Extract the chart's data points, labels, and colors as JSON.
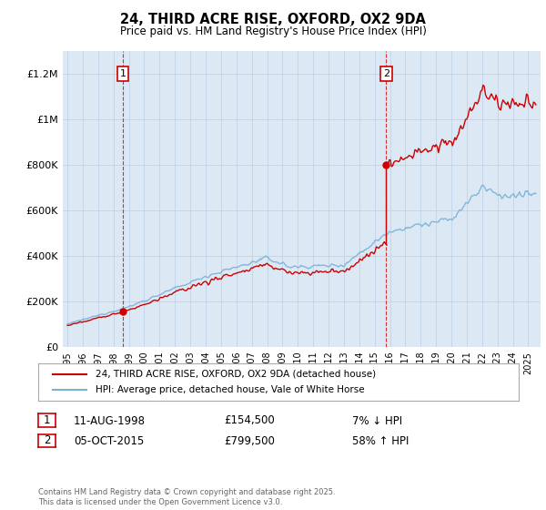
{
  "title": "24, THIRD ACRE RISE, OXFORD, OX2 9DA",
  "subtitle": "Price paid vs. HM Land Registry's House Price Index (HPI)",
  "ylim": [
    0,
    1300000
  ],
  "yticks": [
    0,
    200000,
    400000,
    600000,
    800000,
    1000000,
    1200000
  ],
  "ytick_labels": [
    "£0",
    "£200K",
    "£400K",
    "£600K",
    "£800K",
    "£1M",
    "£1.2M"
  ],
  "legend_line1": "24, THIRD ACRE RISE, OXFORD, OX2 9DA (detached house)",
  "legend_line2": "HPI: Average price, detached house, Vale of White Horse",
  "annotation1_label": "1",
  "annotation1_date": "11-AUG-1998",
  "annotation1_price": "£154,500",
  "annotation1_hpi": "7% ↓ HPI",
  "annotation2_label": "2",
  "annotation2_date": "05-OCT-2015",
  "annotation2_price": "£799,500",
  "annotation2_hpi": "58% ↑ HPI",
  "line_color_red": "#cc0000",
  "line_color_blue": "#7ab0d4",
  "vline_color": "#cc0000",
  "marker_color_red": "#cc0000",
  "background_color": "#dce9f5",
  "grid_color": "#c0d4e8",
  "copyright_text": "Contains HM Land Registry data © Crown copyright and database right 2025.\nThis data is licensed under the Open Government Licence v3.0.",
  "sale1_x": 1998.6,
  "sale1_y": 154500,
  "sale2_x": 2015.75,
  "sale2_y": 799500,
  "vline1_x": 1998.6,
  "vline2_x": 2015.75,
  "xlim_left": 1994.7,
  "xlim_right": 2025.8
}
